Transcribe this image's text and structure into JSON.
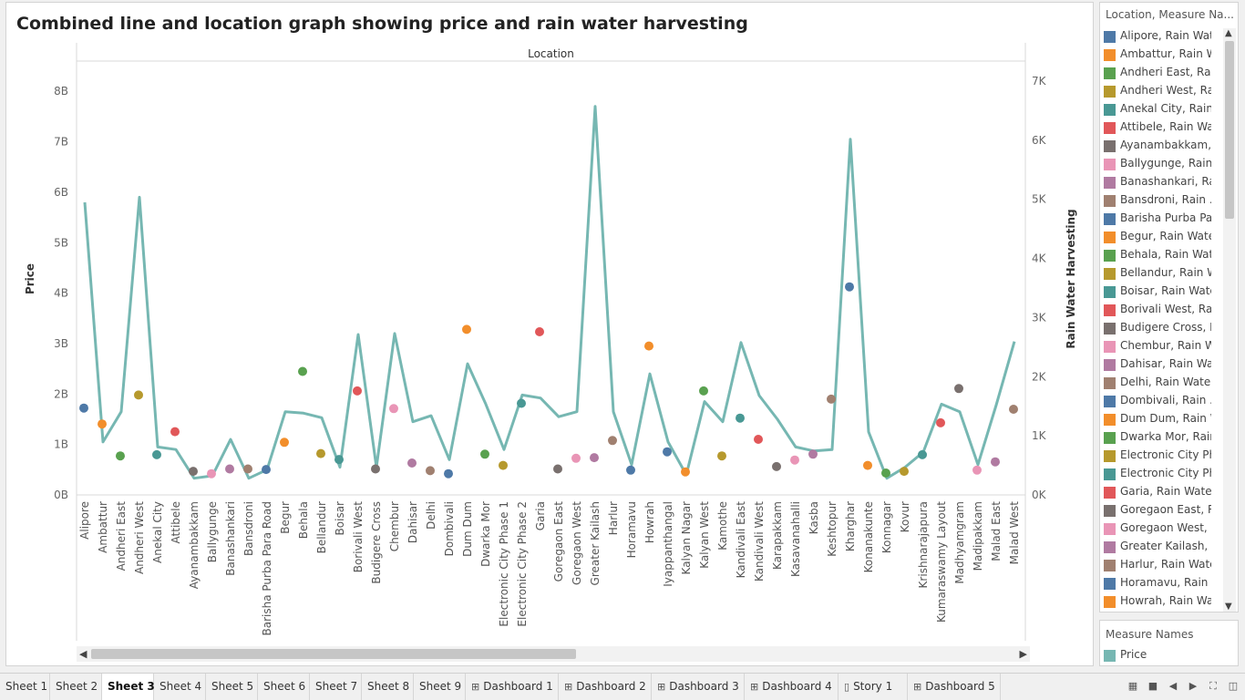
{
  "title": "Combined line and location graph showing price and  rain water harvesting",
  "colors": {
    "line": "#76b7b2",
    "palette": [
      "#4e79a7",
      "#f28e2b",
      "#59a14f",
      "#b6992d",
      "#499894",
      "#e15759",
      "#79706e",
      "#e995b6",
      "#b07aa1",
      "#a08070",
      "#4e79a7",
      "#f28e2b",
      "#59a14f",
      "#b6992d",
      "#499894",
      "#e15759",
      "#79706e",
      "#e995b6",
      "#b07aa1",
      "#a08070",
      "#4e79a7",
      "#f28e2b",
      "#59a14f",
      "#b6992d",
      "#499894",
      "#e15759",
      "#79706e",
      "#e995b6",
      "#b07aa1",
      "#a08070",
      "#4e79a7",
      "#f28e2b"
    ]
  },
  "chart_data": {
    "type": "line",
    "header": "Location",
    "ylabel": "Price",
    "y2label": "Rain Water Harvesting",
    "ylim": [
      0,
      8600000000
    ],
    "y2lim": [
      0,
      7340
    ],
    "yticks": [
      {
        "v": 0,
        "t": "0B"
      },
      {
        "v": 1000000000,
        "t": "1B"
      },
      {
        "v": 2000000000,
        "t": "2B"
      },
      {
        "v": 3000000000,
        "t": "3B"
      },
      {
        "v": 4000000000,
        "t": "4B"
      },
      {
        "v": 5000000000,
        "t": "5B"
      },
      {
        "v": 6000000000,
        "t": "6B"
      },
      {
        "v": 7000000000,
        "t": "7B"
      },
      {
        "v": 8000000000,
        "t": "8B"
      }
    ],
    "y2ticks": [
      {
        "v": 0,
        "t": "0K"
      },
      {
        "v": 1000,
        "t": "1K"
      },
      {
        "v": 2000,
        "t": "2K"
      },
      {
        "v": 3000,
        "t": "3K"
      },
      {
        "v": 4000,
        "t": "4K"
      },
      {
        "v": 5000,
        "t": "5K"
      },
      {
        "v": 6000,
        "t": "6K"
      },
      {
        "v": 7000,
        "t": "7K"
      }
    ],
    "categories": [
      "Alipore",
      "Ambattur",
      "Andheri East",
      "Andheri West",
      "Anekal City",
      "Attibele",
      "Ayanambakkam",
      "Ballygunge",
      "Banashankari",
      "Bansdroni",
      "Barisha Purba Para Road",
      "Begur",
      "Behala",
      "Bellandur",
      "Boisar",
      "Borivali West",
      "Budigere Cross",
      "Chembur",
      "Dahisar",
      "Delhi",
      "Dombivali",
      "Dum Dum",
      "Dwarka Mor",
      "Electronic City Phase 1",
      "Electronic City Phase 2",
      "Garia",
      "Goregaon East",
      "Goregaon West",
      "Greater Kailash",
      "Harlur",
      "Horamavu",
      "Howrah",
      "Iyappanthangal",
      "Kalyan Nagar",
      "Kalyan West",
      "Kamothe",
      "Kandivali East",
      "Kandivali West",
      "Karapakkam",
      "Kasavanahalli",
      "Kasba",
      "Keshtopur",
      "Kharghar",
      "Konanakunte",
      "Konnagar",
      "Kovur",
      "Krishnarajapura",
      "Kumaraswamy Layout",
      "Madhyamgram",
      "Madipakkam",
      "Malad East",
      "Malad West"
    ],
    "series": [
      {
        "name": "Price",
        "axis": "left",
        "kind": "line",
        "values": [
          5800000000,
          1050000000,
          1650000000,
          5900000000,
          950000000,
          900000000,
          330000000,
          380000000,
          1100000000,
          330000000,
          500000000,
          1650000000,
          1620000000,
          1530000000,
          550000000,
          3180000000,
          550000000,
          3200000000,
          1450000000,
          1570000000,
          700000000,
          2600000000,
          1800000000,
          900000000,
          1980000000,
          1920000000,
          1550000000,
          1650000000,
          7700000000,
          1650000000,
          600000000,
          2400000000,
          1050000000,
          400000000,
          1850000000,
          1450000000,
          3020000000,
          1970000000,
          1500000000,
          950000000,
          870000000,
          900000000,
          7050000000,
          1250000000,
          330000000,
          550000000,
          850000000,
          1800000000,
          1650000000,
          600000000,
          1780000000,
          3040000000
        ]
      },
      {
        "name": "Rain Water Harvesting",
        "axis": "right",
        "kind": "dots",
        "values": [
          1470,
          1200,
          660,
          1690,
          680,
          1070,
          400,
          360,
          440,
          440,
          430,
          890,
          2090,
          700,
          600,
          1760,
          440,
          1460,
          540,
          410,
          360,
          2800,
          690,
          500,
          1550,
          2760,
          440,
          620,
          630,
          920,
          420,
          2520,
          730,
          390,
          1760,
          660,
          1300,
          940,
          480,
          590,
          690,
          1620,
          3520,
          500,
          370,
          400,
          680,
          1220,
          1800,
          420,
          560,
          1450
        ]
      }
    ]
  },
  "legend": {
    "title": "Location, Measure Na...",
    "items": [
      "Alipore, Rain Wat...",
      "Ambattur, Rain W...",
      "Andheri East, Rai...",
      "Andheri West, Rai...",
      "Anekal City, Rain ..",
      "Attibele, Rain Wa...",
      "Ayanambakkam, ..",
      "Ballygunge, Rain ..",
      "Banashankari, Ra...",
      "Bansdroni, Rain ..",
      "Barisha Purba Par...",
      "Begur, Rain Wate...",
      "Behala, Rain Wat...",
      "Bellandur, Rain W...",
      "Boisar, Rain Wate...",
      "Borivali West, Rai...",
      "Budigere Cross, R...",
      "Chembur, Rain W...",
      "Dahisar, Rain Wat...",
      "Delhi, Rain Water ..",
      "Dombivali, Rain ..",
      "Dum Dum, Rain W...",
      "Dwarka Mor, Rain...",
      "Electronic City Ph...",
      "Electronic City Ph...",
      "Garia, Rain Water...",
      "Goregaon East, R...",
      "Goregaon West, R...",
      "Greater Kailash, ..",
      "Harlur, Rain Wate...",
      "Horamavu, Rain ..",
      "Howrah, Rain Wa..."
    ]
  },
  "measure_card": {
    "title": "Measure Names",
    "item": "Price"
  },
  "tabs": [
    {
      "label": "Sheet 1",
      "icon": ""
    },
    {
      "label": "Sheet 2",
      "icon": ""
    },
    {
      "label": "Sheet 3",
      "icon": "",
      "active": true
    },
    {
      "label": "Sheet 4",
      "icon": ""
    },
    {
      "label": "Sheet 5",
      "icon": ""
    },
    {
      "label": "Sheet 6",
      "icon": ""
    },
    {
      "label": "Sheet 7",
      "icon": ""
    },
    {
      "label": "Sheet 8",
      "icon": ""
    },
    {
      "label": "Sheet 9",
      "icon": ""
    },
    {
      "label": "Dashboard 1",
      "icon": "grid-icon"
    },
    {
      "label": "Dashboard 2",
      "icon": "grid-icon"
    },
    {
      "label": "Dashboard 3",
      "icon": "grid-icon"
    },
    {
      "label": "Dashboard 4",
      "icon": "grid-icon"
    },
    {
      "label": "Story 1",
      "icon": "story-icon"
    },
    {
      "label": "Dashboard 5",
      "icon": "grid-icon"
    }
  ]
}
